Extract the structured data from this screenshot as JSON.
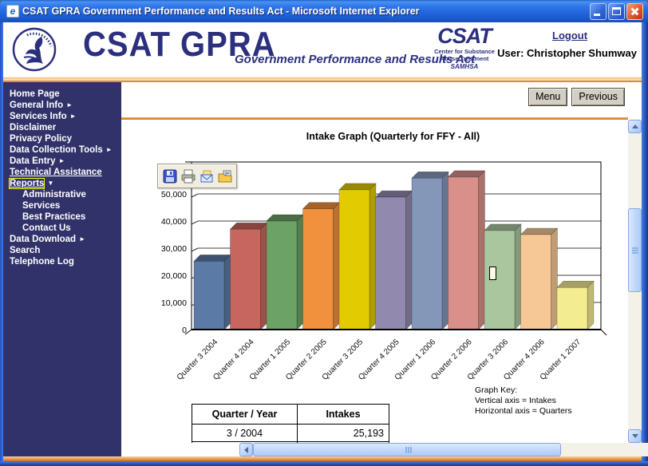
{
  "window": {
    "title": "CSAT GPRA Government Performance and Results Act - Microsoft Internet Explorer",
    "controls": [
      "minimize",
      "maximize",
      "close"
    ]
  },
  "header": {
    "brand": "CSAT GPRA",
    "brand_subtitle": "Government Performance and Results Act",
    "csat_logo": {
      "title": "CSAT",
      "line1": "Center for Substance",
      "line2": "Abuse Treatment",
      "line3": "SAMHSA"
    },
    "logout": "Logout",
    "user": "User: Christopher Shumway"
  },
  "sidebar": {
    "items": [
      {
        "label": "Home Page"
      },
      {
        "label": "General Info",
        "arrow": "right"
      },
      {
        "label": "Services Info",
        "arrow": "right"
      },
      {
        "label": "Disclaimer"
      },
      {
        "label": "Privacy Policy"
      },
      {
        "label": "Data Collection Tools",
        "arrow": "right"
      },
      {
        "label": "Data Entry",
        "arrow": "right"
      },
      {
        "label": "Technical Assistance",
        "underline": true
      },
      {
        "label": "Reports",
        "arrow": "down",
        "underline": true,
        "focused": true
      },
      {
        "label": "Administrative",
        "indent": true
      },
      {
        "label": "Services",
        "indent": true
      },
      {
        "label": "Best Practices",
        "indent": true
      },
      {
        "label": "Contact Us",
        "indent": true
      },
      {
        "label": "Data Download",
        "arrow": "right"
      },
      {
        "label": "Search"
      },
      {
        "label": "Telephone Log"
      }
    ]
  },
  "actions": {
    "menu": "Menu",
    "previous": "Previous"
  },
  "chart_toolbar": {
    "icons": [
      "save-icon",
      "print-icon",
      "email-icon",
      "export-image-icon"
    ]
  },
  "chart_data": {
    "type": "bar",
    "title": "Intake Graph (Quarterly for FFY - All)",
    "categories": [
      "Quarter 3 2004",
      "Quarter 4 2004",
      "Quarter 1 2005",
      "Quarter 2 2005",
      "Quarter 3 2005",
      "Quarter 4 2005",
      "Quarter 1 2006",
      "Quarter 2 2006",
      "Quarter 3 2006",
      "Quarter 4 2006",
      "Quarter 1 2007"
    ],
    "values": [
      25193,
      37000,
      40000,
      44500,
      51500,
      48800,
      55800,
      56200,
      36500,
      35000,
      15500
    ],
    "yticks": [
      0,
      10000,
      20000,
      30000,
      40000,
      50000
    ],
    "ylim": [
      0,
      61000
    ],
    "xlabel": "Quarters",
    "ylabel": "Intakes",
    "grid": true,
    "legend": false,
    "style": "3d",
    "bar_colors": [
      "#5B7AA5",
      "#C7665E",
      "#6CA266",
      "#F2913D",
      "#E2CB00",
      "#9189AE",
      "#8497B8",
      "#D9908A",
      "#A9C69F",
      "#F6C896",
      "#F3EC91"
    ]
  },
  "graph_key": {
    "title": "Graph Key:",
    "lines": [
      "Vertical axis = Intakes",
      "Horizontal axis = Quarters"
    ]
  },
  "table": {
    "headers": [
      "Quarter / Year",
      "Intakes"
    ],
    "rows": [
      [
        "3 / 2004",
        "25,193"
      ]
    ]
  }
}
